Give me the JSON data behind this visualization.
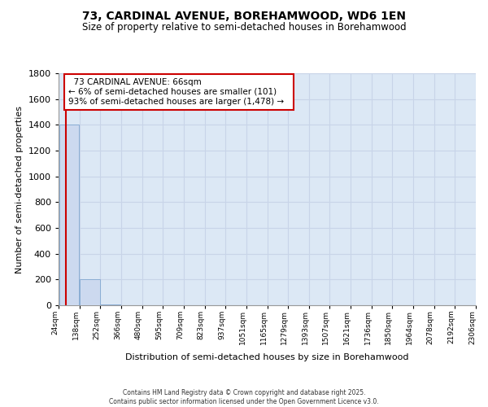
{
  "title": "73, CARDINAL AVENUE, BOREHAMWOOD, WD6 1EN",
  "subtitle": "Size of property relative to semi-detached houses in Borehamwood",
  "xlabel": "Distribution of semi-detached houses by size in Borehamwood",
  "ylabel": "Number of semi-detached properties",
  "bar_values": [
    1400,
    200,
    5,
    2,
    1,
    1,
    0,
    0,
    0,
    0,
    0,
    0,
    0,
    0,
    0,
    0,
    0,
    0,
    0,
    0
  ],
  "bar_labels": [
    "24sqm",
    "138sqm",
    "252sqm",
    "366sqm",
    "480sqm",
    "595sqm",
    "709sqm",
    "823sqm",
    "937sqm",
    "1051sqm",
    "1165sqm",
    "1279sqm",
    "1393sqm",
    "1507sqm",
    "1621sqm",
    "1736sqm",
    "1850sqm",
    "1964sqm",
    "2078sqm",
    "2192sqm",
    "2306sqm"
  ],
  "bar_color": "#ccd9ef",
  "bar_edgecolor": "#8aadd4",
  "property_label": "73 CARDINAL AVENUE: 66sqm",
  "smaller_text": "← 6% of semi-detached houses are smaller (101)",
  "larger_text": "93% of semi-detached houses are larger (1,478) →",
  "vline_color": "#cc0000",
  "ann_edgecolor": "#cc0000",
  "ylim": [
    0,
    1800
  ],
  "yticks": [
    0,
    200,
    400,
    600,
    800,
    1000,
    1200,
    1400,
    1600,
    1800
  ],
  "grid_color": "#c8d4e8",
  "background_color": "#dce8f5",
  "footer": "Contains HM Land Registry data © Crown copyright and database right 2025.\nContains public sector information licensed under the Open Government Licence v3.0."
}
